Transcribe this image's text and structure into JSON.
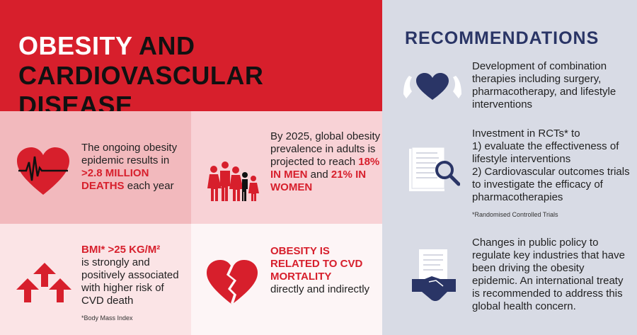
{
  "header": {
    "title_highlight": "OBESITY",
    "title_rest": " AND",
    "title_line2": "CARDIOVASCULAR DISEASE"
  },
  "colors": {
    "red": "#d71f2c",
    "navy": "#2a3566",
    "panel": "#d8dbe5"
  },
  "facts": [
    {
      "icon": "heartbeat-heart-icon",
      "pre": "The ongoing obesity epidemic results in ",
      "highlight": ">2.8 MILLION DEATHS",
      "post": " each year"
    },
    {
      "icon": "family-icon",
      "pre": "By 2025, global obesity prevalence in adults is projected to reach ",
      "highlight1": "18% IN MEN",
      "mid": " and ",
      "highlight2": "21% IN WOMEN"
    },
    {
      "icon": "up-arrows-icon",
      "highlight": "BMI* >25 KG/M²",
      "post": "is strongly and positively associated with higher risk of CVD death",
      "note": "*Body Mass Index"
    },
    {
      "icon": "broken-heart-icon",
      "highlight": "OBESITY IS RELATED TO CVD MORTALITY",
      "post": "directly and indirectly"
    }
  ],
  "recommendations": {
    "title": "RECOMMENDATIONS",
    "items": [
      {
        "icon": "hands-heart-icon",
        "text": "Development of combination therapies including surgery, pharmacotherapy, and lifestyle interventions"
      },
      {
        "icon": "document-search-icon",
        "line1": "Investment in RCTs* to",
        "line2": "1) evaluate the effectiveness of lifestyle interventions",
        "line3": "2) Cardiovascular outcomes trials to investigate the efficacy of pharmacotherapies",
        "note": "*Randomised Controlled Trials"
      },
      {
        "icon": "handshake-document-icon",
        "text": "Changes in public policy to regulate key industries that have been driving the obesity epidemic. An international treaty is recommended to address this global health concern."
      }
    ]
  }
}
